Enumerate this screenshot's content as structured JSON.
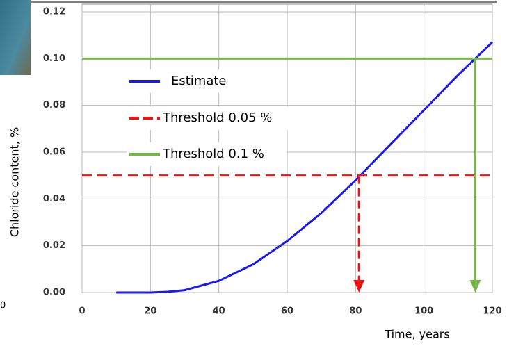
{
  "chart_data": {
    "type": "line",
    "x_label": "Time, years",
    "y_label": "Chloride content, %",
    "fragment": "0",
    "xlim": [
      0,
      120
    ],
    "xticks": [
      0,
      20,
      40,
      60,
      80,
      100,
      120
    ],
    "ylim": [
      0,
      0.12
    ],
    "yticks": [
      {
        "value": 0,
        "label": "0.00"
      },
      {
        "value": 0.02,
        "label": "0.02"
      },
      {
        "value": 0.04,
        "label": "0.04"
      },
      {
        "value": 0.06,
        "label": "0.06"
      },
      {
        "value": 0.08,
        "label": "0.08"
      },
      {
        "value": 0.1,
        "label": "0.10"
      },
      {
        "value": 0.12,
        "label": "0.12"
      }
    ],
    "grid": true,
    "series": [
      {
        "name": "Estimate",
        "color": "#1a1aee",
        "dash": false,
        "x": [
          10,
          20,
          25,
          30,
          40,
          50,
          60,
          70,
          80,
          90,
          100,
          110,
          120
        ],
        "values": [
          0,
          0,
          0.0003,
          0.001,
          0.005,
          0.012,
          0.022,
          0.034,
          0.048,
          0.063,
          0.078,
          0.093,
          0.107
        ]
      },
      {
        "name": "Threshold 0.05 %",
        "color": "#ee1111",
        "dash": true,
        "x": [
          0,
          120
        ],
        "values": [
          0.05,
          0.05
        ]
      },
      {
        "name": "Threshold 0.1 %",
        "color": "#77b748",
        "dash": false,
        "x": [
          0,
          120
        ],
        "values": [
          0.1,
          0.1
        ]
      }
    ],
    "arrows": [
      {
        "color": "#ee1111",
        "x": 81,
        "from": 0.05,
        "to": 0
      },
      {
        "color": "#77b748",
        "x": 115,
        "from": 0.1,
        "to": 0
      }
    ]
  }
}
